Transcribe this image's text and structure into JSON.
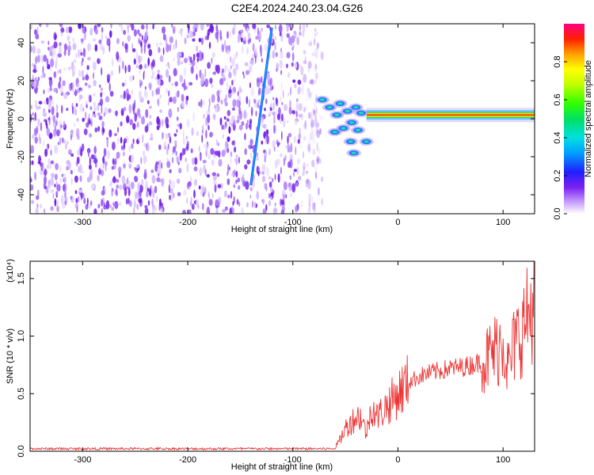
{
  "title": "C2E4.2024.240.23.04.G26",
  "colors": {
    "snr_line": "#ee3333",
    "frame": "#000000"
  },
  "chart_data": [
    {
      "type": "heatmap",
      "xlabel": "Height of straight line (km)",
      "ylabel": "Frequency (Hz)",
      "xlim": [
        -350,
        130
      ],
      "ylim": [
        -50,
        50
      ],
      "x_ticks": [
        -300,
        -200,
        -100,
        0,
        100
      ],
      "y_ticks": [
        -40,
        -20,
        0,
        20,
        40
      ],
      "colorbar": {
        "label": "Normalized spectral amplitude",
        "range": [
          0,
          1
        ],
        "ticks": [
          "0.0",
          "0.2",
          "0.4",
          "0.6",
          "0.8"
        ],
        "tick_values": [
          0,
          0.2,
          0.4,
          0.6,
          0.8
        ],
        "colormap": "rainbow"
      },
      "features": [
        {
          "name": "noise",
          "x_range": [
            -350,
            -75
          ],
          "y_range": [
            -50,
            50
          ],
          "amplitude": 0.15
        },
        {
          "name": "streak",
          "x": [
            -140,
            -120
          ],
          "y": [
            -35,
            48
          ],
          "amplitude": 0.2
        },
        {
          "name": "signal",
          "x_range": [
            -75,
            130
          ],
          "y": 2,
          "amplitude": 0.95
        }
      ]
    },
    {
      "type": "line",
      "xlabel": "Height of straight line (km)",
      "ylabel": "SNR (10 * v/v)",
      "scale_label": "(x10⁴)",
      "xlim": [
        -350,
        130
      ],
      "ylim": [
        0,
        1.65
      ],
      "x_ticks": [
        -300,
        -200,
        -100,
        0,
        100
      ],
      "y_ticks": [
        "0.0",
        "0.5",
        "1.0",
        "1.5"
      ],
      "y_tick_values": [
        0,
        0.5,
        1.0,
        1.5
      ],
      "series": [
        {
          "x": [
            -350,
            -300,
            -250,
            -200,
            -150,
            -100,
            -80,
            -60,
            -55,
            -50,
            -45,
            -40,
            -35,
            -30,
            -25,
            -20,
            -15,
            -10,
            -5,
            0,
            5,
            10,
            20,
            30,
            40,
            50,
            60,
            70,
            80,
            85,
            90,
            95,
            100,
            105,
            110,
            115,
            120,
            125,
            130
          ],
          "y": [
            0.02,
            0.01,
            0.01,
            0.01,
            0.01,
            0.01,
            0.02,
            0.03,
            0.1,
            0.2,
            0.25,
            0.3,
            0.3,
            0.15,
            0.4,
            0.3,
            0.35,
            0.4,
            0.45,
            0.5,
            0.55,
            0.6,
            0.65,
            0.68,
            0.7,
            0.72,
            0.73,
            0.75,
            0.78,
            0.8,
            0.85,
            0.9,
            1.0,
            0.7,
            0.9,
            1.0,
            1.1,
            1.2,
            1.3
          ]
        }
      ]
    }
  ]
}
